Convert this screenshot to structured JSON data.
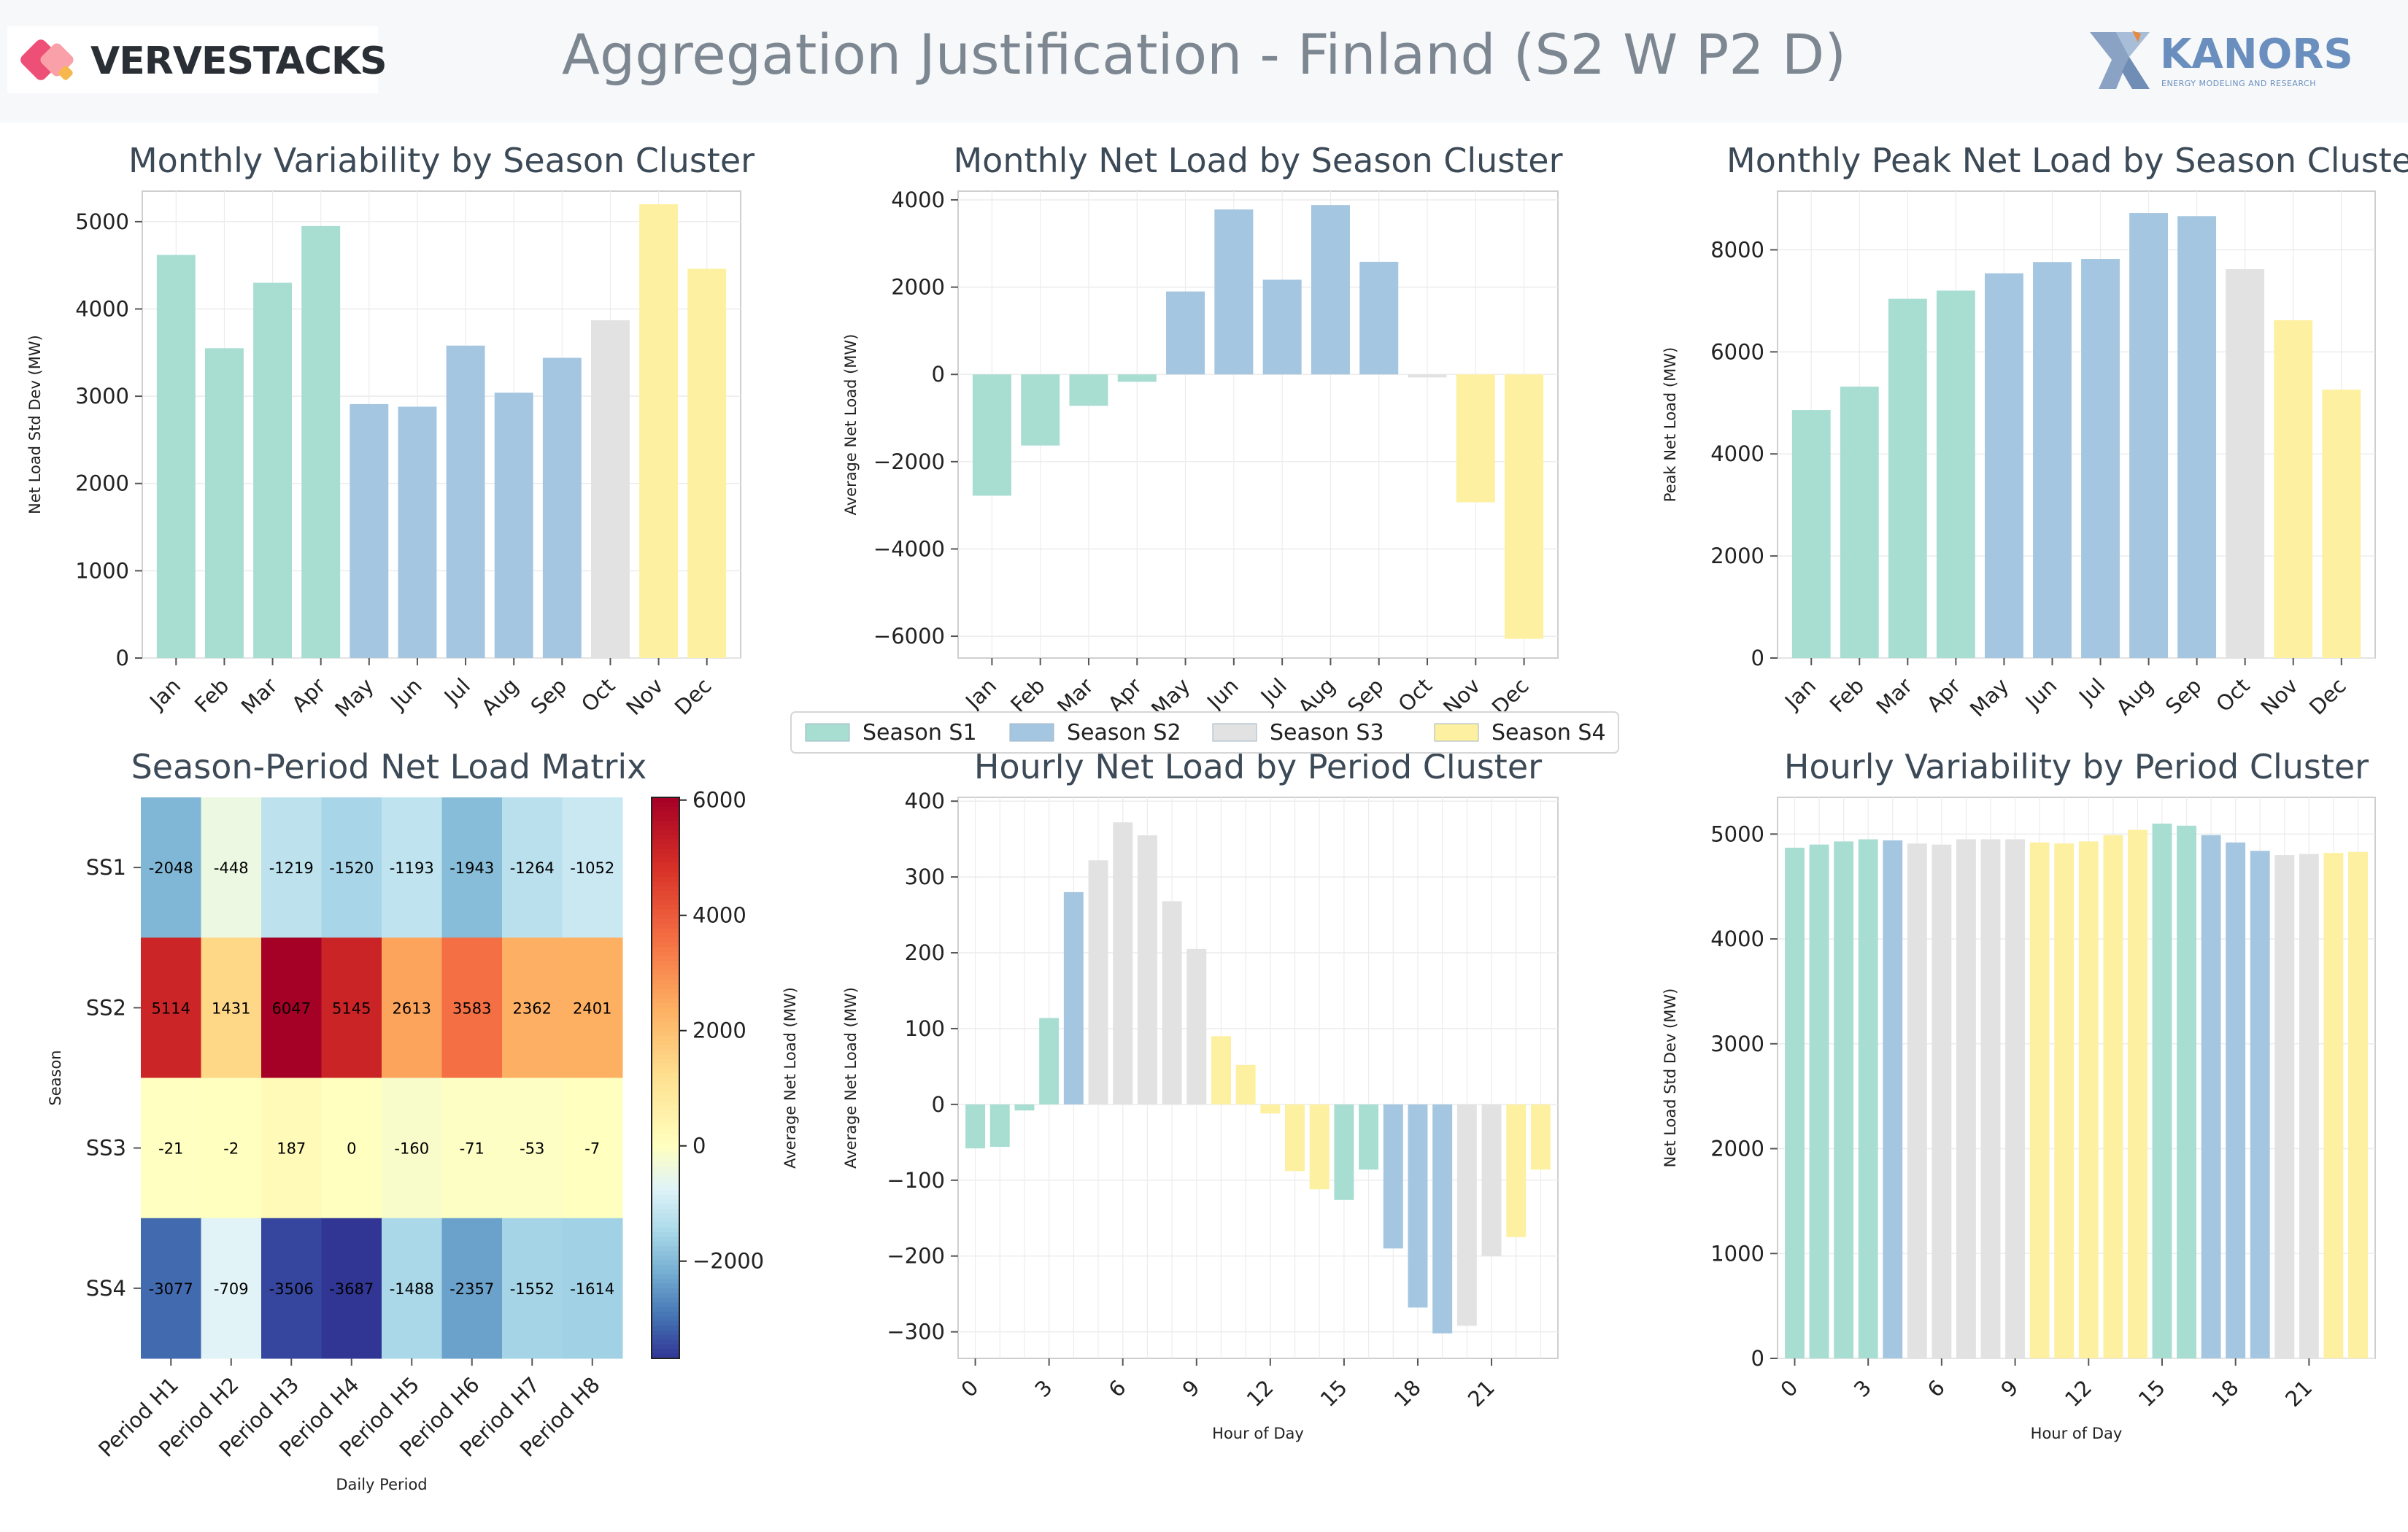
{
  "page": {
    "title": "Aggregation Justification - Finland (S2 W P2 D)",
    "logo_left": "VERVESTACKS",
    "logo_right": "KANORS",
    "logo_right_sub": "ENERGY MODELING AND RESEARCH"
  },
  "colors": {
    "S1": "#a8ddd2",
    "S2": "#a4c6e0",
    "S3": "#e2e2e2",
    "S4": "#fdf0a0",
    "axis": "#cfcfcf",
    "grid": "#ececec",
    "title": "#3c4a57"
  },
  "legend": {
    "items": [
      {
        "key": "S1",
        "label": "Season S1"
      },
      {
        "key": "S2",
        "label": "Season S2"
      },
      {
        "key": "S3",
        "label": "Season S3"
      },
      {
        "key": "S4",
        "label": "Season S4"
      }
    ]
  },
  "chart_data": [
    {
      "id": "monthly-variability",
      "type": "bar",
      "title": "Monthly Variability by Season Cluster",
      "xlabel": "",
      "ylabel": "Net Load Std Dev (MW)",
      "categories": [
        "Jan",
        "Feb",
        "Mar",
        "Apr",
        "May",
        "Jun",
        "Jul",
        "Aug",
        "Sep",
        "Oct",
        "Nov",
        "Dec"
      ],
      "values": [
        4620,
        3550,
        4300,
        4950,
        2910,
        2880,
        3580,
        3040,
        3440,
        3870,
        5200,
        4460
      ],
      "clusters": [
        "S1",
        "S1",
        "S1",
        "S1",
        "S2",
        "S2",
        "S2",
        "S2",
        "S2",
        "S3",
        "S4",
        "S4"
      ],
      "ylim": [
        0,
        5350
      ],
      "yticks": [
        0,
        1000,
        2000,
        3000,
        4000,
        5000
      ],
      "grid": true
    },
    {
      "id": "monthly-net-load",
      "type": "bar",
      "title": "Monthly Net Load by Season Cluster",
      "xlabel": "",
      "ylabel": "Average Net Load (MW)",
      "categories": [
        "Jan",
        "Feb",
        "Mar",
        "Apr",
        "May",
        "Jun",
        "Jul",
        "Aug",
        "Sep",
        "Oct",
        "Nov",
        "Dec"
      ],
      "values": [
        -2780,
        -1630,
        -720,
        -170,
        1900,
        3780,
        2170,
        3880,
        2580,
        -70,
        -2930,
        -6060
      ],
      "clusters": [
        "S1",
        "S1",
        "S1",
        "S1",
        "S2",
        "S2",
        "S2",
        "S2",
        "S2",
        "S3",
        "S4",
        "S4"
      ],
      "ylim": [
        -6500,
        4200
      ],
      "yticks": [
        -6000,
        -4000,
        -2000,
        0,
        2000,
        4000
      ],
      "grid": true
    },
    {
      "id": "monthly-peak-net-load",
      "type": "bar",
      "title": "Monthly Peak Net Load by Season Cluster",
      "xlabel": "",
      "ylabel": "Peak Net Load (MW)",
      "categories": [
        "Jan",
        "Feb",
        "Mar",
        "Apr",
        "May",
        "Jun",
        "Jul",
        "Aug",
        "Sep",
        "Oct",
        "Nov",
        "Dec"
      ],
      "values": [
        4860,
        5320,
        7040,
        7200,
        7540,
        7760,
        7820,
        8720,
        8660,
        7620,
        6620,
        5260
      ],
      "clusters": [
        "S1",
        "S1",
        "S1",
        "S1",
        "S2",
        "S2",
        "S2",
        "S2",
        "S2",
        "S3",
        "S4",
        "S4"
      ],
      "ylim": [
        0,
        9150
      ],
      "yticks": [
        0,
        2000,
        4000,
        6000,
        8000
      ],
      "grid": true
    },
    {
      "id": "season-period-matrix",
      "type": "heatmap",
      "title": "Season-Period Net Load Matrix",
      "xlabel": "Daily Period",
      "ylabel": "Season",
      "colorbar_label": "Average Net Load (MW)",
      "rows": [
        "SS1",
        "SS2",
        "SS3",
        "SS4"
      ],
      "columns": [
        "Period H1",
        "Period H2",
        "Period H3",
        "Period H4",
        "Period H5",
        "Period H6",
        "Period H7",
        "Period H8"
      ],
      "values": [
        [
          -2048,
          -448,
          -1219,
          -1520,
          -1193,
          -1943,
          -1264,
          -1052
        ],
        [
          5114,
          1431,
          6047,
          5145,
          2613,
          3583,
          2362,
          2401
        ],
        [
          -21,
          -2,
          187,
          0,
          -160,
          -71,
          -53,
          -7
        ],
        [
          -3077,
          -709,
          -3506,
          -3687,
          -1488,
          -2357,
          -1552,
          -1614
        ]
      ],
      "zlim": [
        -3687,
        6047
      ],
      "colorbar_ticks": [
        -2000,
        0,
        2000,
        4000,
        6000
      ]
    },
    {
      "id": "hourly-net-load",
      "type": "bar",
      "title": "Hourly Net Load by Period Cluster",
      "xlabel": "Hour of Day",
      "ylabel": "Average Net Load (MW)",
      "x": [
        0,
        1,
        2,
        3,
        4,
        5,
        6,
        7,
        8,
        9,
        10,
        11,
        12,
        13,
        14,
        15,
        16,
        17,
        18,
        19,
        20,
        21,
        22,
        23
      ],
      "xticks": [
        0,
        3,
        6,
        9,
        12,
        15,
        18,
        21
      ],
      "values": [
        -58,
        -56,
        -8,
        114,
        280,
        322,
        372,
        355,
        268,
        205,
        90,
        52,
        -12,
        -88,
        -112,
        -126,
        -86,
        -190,
        -268,
        -302,
        -292,
        -200,
        -175,
        -86
      ],
      "clusters": [
        "S1",
        "S1",
        "S1",
        "S1",
        "S2",
        "S3",
        "S3",
        "S3",
        "S3",
        "S3",
        "S4",
        "S4",
        "S4",
        "S4",
        "S4",
        "S1",
        "S1",
        "S2",
        "S2",
        "S2",
        "S3",
        "S3",
        "S4",
        "S4"
      ],
      "ylim": [
        -335,
        405
      ],
      "yticks": [
        -300,
        -200,
        -100,
        0,
        100,
        200,
        300,
        400
      ],
      "grid": true
    },
    {
      "id": "hourly-variability",
      "type": "bar",
      "title": "Hourly Variability by Period Cluster",
      "xlabel": "Hour of Day",
      "ylabel": "Net Load Std Dev (MW)",
      "x": [
        0,
        1,
        2,
        3,
        4,
        5,
        6,
        7,
        8,
        9,
        10,
        11,
        12,
        13,
        14,
        15,
        16,
        17,
        18,
        19,
        20,
        21,
        22,
        23
      ],
      "xticks": [
        0,
        3,
        6,
        9,
        12,
        15,
        18,
        21
      ],
      "values": [
        4870,
        4900,
        4930,
        4950,
        4940,
        4910,
        4900,
        4950,
        4950,
        4950,
        4920,
        4910,
        4930,
        4990,
        5040,
        5100,
        5080,
        4990,
        4920,
        4840,
        4800,
        4810,
        4820,
        4830
      ],
      "clusters": [
        "S1",
        "S1",
        "S1",
        "S1",
        "S2",
        "S3",
        "S3",
        "S3",
        "S3",
        "S3",
        "S4",
        "S4",
        "S4",
        "S4",
        "S4",
        "S1",
        "S1",
        "S2",
        "S2",
        "S2",
        "S3",
        "S3",
        "S4",
        "S4"
      ],
      "ylim": [
        0,
        5350
      ],
      "yticks": [
        0,
        1000,
        2000,
        3000,
        4000,
        5000
      ],
      "grid": true
    }
  ]
}
